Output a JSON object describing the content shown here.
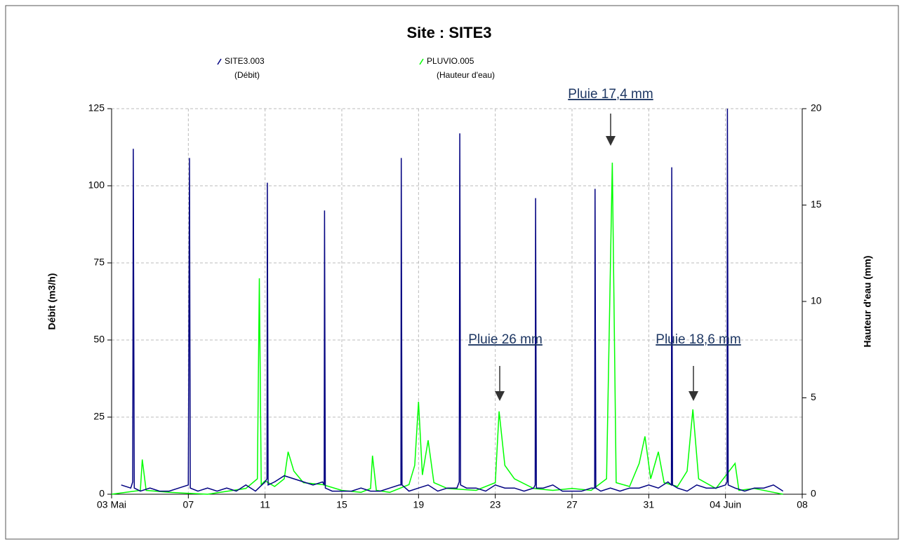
{
  "chart_data": {
    "type": "line",
    "title": "Site :  SITE3",
    "ylabel": "Débit  (m3/h)",
    "y2label": "Hauteur d'eau  (mm)",
    "xlim": [
      0,
      36
    ],
    "xticks": [
      {
        "value": 0,
        "label": "03 Mai"
      },
      {
        "value": 4,
        "label": "07"
      },
      {
        "value": 8,
        "label": "11"
      },
      {
        "value": 12,
        "label": "15"
      },
      {
        "value": 16,
        "label": "19"
      },
      {
        "value": 20,
        "label": "23"
      },
      {
        "value": 24,
        "label": "27"
      },
      {
        "value": 28,
        "label": "31"
      },
      {
        "value": 32,
        "label": "04 Juin"
      },
      {
        "value": 36,
        "label": "08"
      }
    ],
    "ylim": [
      0,
      125
    ],
    "yticks": [
      0,
      25,
      50,
      75,
      100,
      125
    ],
    "y2lim": [
      0,
      20
    ],
    "y2ticks": [
      0,
      5,
      10,
      15,
      20
    ],
    "grid": true,
    "series": [
      {
        "name": "SITE3.003",
        "label": "(Débit)",
        "color": "#000080",
        "x": [
          0.5,
          1.0,
          1.1,
          1.13,
          1.18,
          1.5,
          2,
          2.5,
          3,
          3.5,
          4.0,
          4.06,
          4.1,
          4.5,
          5,
          5.5,
          6,
          6.5,
          7,
          7.5,
          8,
          8.1,
          8.12,
          8.16,
          8.5,
          9,
          9.5,
          10,
          10.5,
          11,
          11.08,
          11.1,
          11.14,
          11.5,
          12,
          12.5,
          13,
          13.5,
          14,
          14.5,
          15,
          15.08,
          15.1,
          15.14,
          15.5,
          16,
          16.5,
          17,
          17.5,
          18,
          18.12,
          18.15,
          18.19,
          18.5,
          19,
          19.5,
          20,
          20.5,
          21,
          21.5,
          22,
          22.08,
          22.1,
          22.14,
          22.5,
          23,
          23.5,
          24,
          24.5,
          25,
          25.18,
          25.2,
          25.24,
          25.5,
          26,
          26.5,
          27,
          27.5,
          28,
          28.5,
          29,
          29.18,
          29.2,
          29.24,
          29.5,
          30,
          30.5,
          31,
          31.5,
          32,
          32.08,
          32.1,
          32.14,
          32.5,
          33,
          33.5,
          34,
          34.5,
          35
        ],
        "values": [
          3,
          2,
          4,
          112,
          2,
          1,
          2,
          1,
          1,
          2,
          3,
          109,
          2,
          1,
          2,
          1,
          2,
          1,
          3,
          1,
          4,
          5,
          101,
          3,
          4,
          6,
          5,
          4,
          3,
          4,
          3,
          92,
          2,
          1,
          1,
          1,
          2,
          1,
          1,
          2,
          3,
          3,
          109,
          3,
          1,
          2,
          3,
          1,
          2,
          2,
          4,
          117,
          3,
          2,
          2,
          1,
          3,
          2,
          2,
          1,
          2,
          3,
          96,
          2,
          2,
          3,
          1,
          1,
          1,
          2,
          2,
          99,
          2,
          1,
          2,
          1,
          2,
          2,
          3,
          2,
          4,
          3,
          106,
          3,
          2,
          1,
          3,
          2,
          2,
          3,
          4,
          125,
          3,
          2,
          1,
          2,
          2,
          3,
          1
        ]
      },
      {
        "name": "PLUVIO.005",
        "label": "(Hauteur d'eau)",
        "color": "#00ff00",
        "axis": "y2",
        "x": [
          0,
          1.5,
          1.6,
          1.8,
          3,
          5,
          7,
          7.6,
          7.7,
          7.8,
          8,
          8.5,
          9,
          9.2,
          9.5,
          10,
          11,
          12,
          13,
          13.5,
          13.6,
          13.8,
          14.5,
          15.5,
          15.8,
          16.0,
          16.2,
          16.5,
          16.8,
          17.5,
          19,
          20,
          20.2,
          20.5,
          21,
          22,
          23,
          24,
          25,
          25.8,
          26.1,
          26.3,
          27,
          27.5,
          27.8,
          28.1,
          28.5,
          28.8,
          29.5,
          30,
          30.3,
          30.6,
          31.5,
          32.5,
          32.7,
          33.5,
          34.5,
          35
        ],
        "values": [
          0,
          0.2,
          1.8,
          0.2,
          0.1,
          0,
          0.3,
          0.8,
          11.2,
          0.5,
          0.7,
          0.4,
          0.8,
          2.2,
          1.2,
          0.6,
          0.5,
          0.2,
          0.1,
          0.3,
          2,
          0.2,
          0.1,
          0.5,
          1.5,
          4.8,
          1,
          2.8,
          0.6,
          0.3,
          0.2,
          0.6,
          4.3,
          1.5,
          0.8,
          0.3,
          0.2,
          0.3,
          0.2,
          0.8,
          17.2,
          0.6,
          0.4,
          1.6,
          3,
          0.8,
          2.2,
          0.6,
          0.4,
          1.2,
          4.4,
          0.8,
          0.3,
          1.6,
          0.2,
          0.3,
          0.1,
          0
        ]
      }
    ],
    "annotations": [
      "Pluie 17,4 mm",
      "Pluie 26 mm",
      "Pluie 18,6 mm"
    ]
  }
}
